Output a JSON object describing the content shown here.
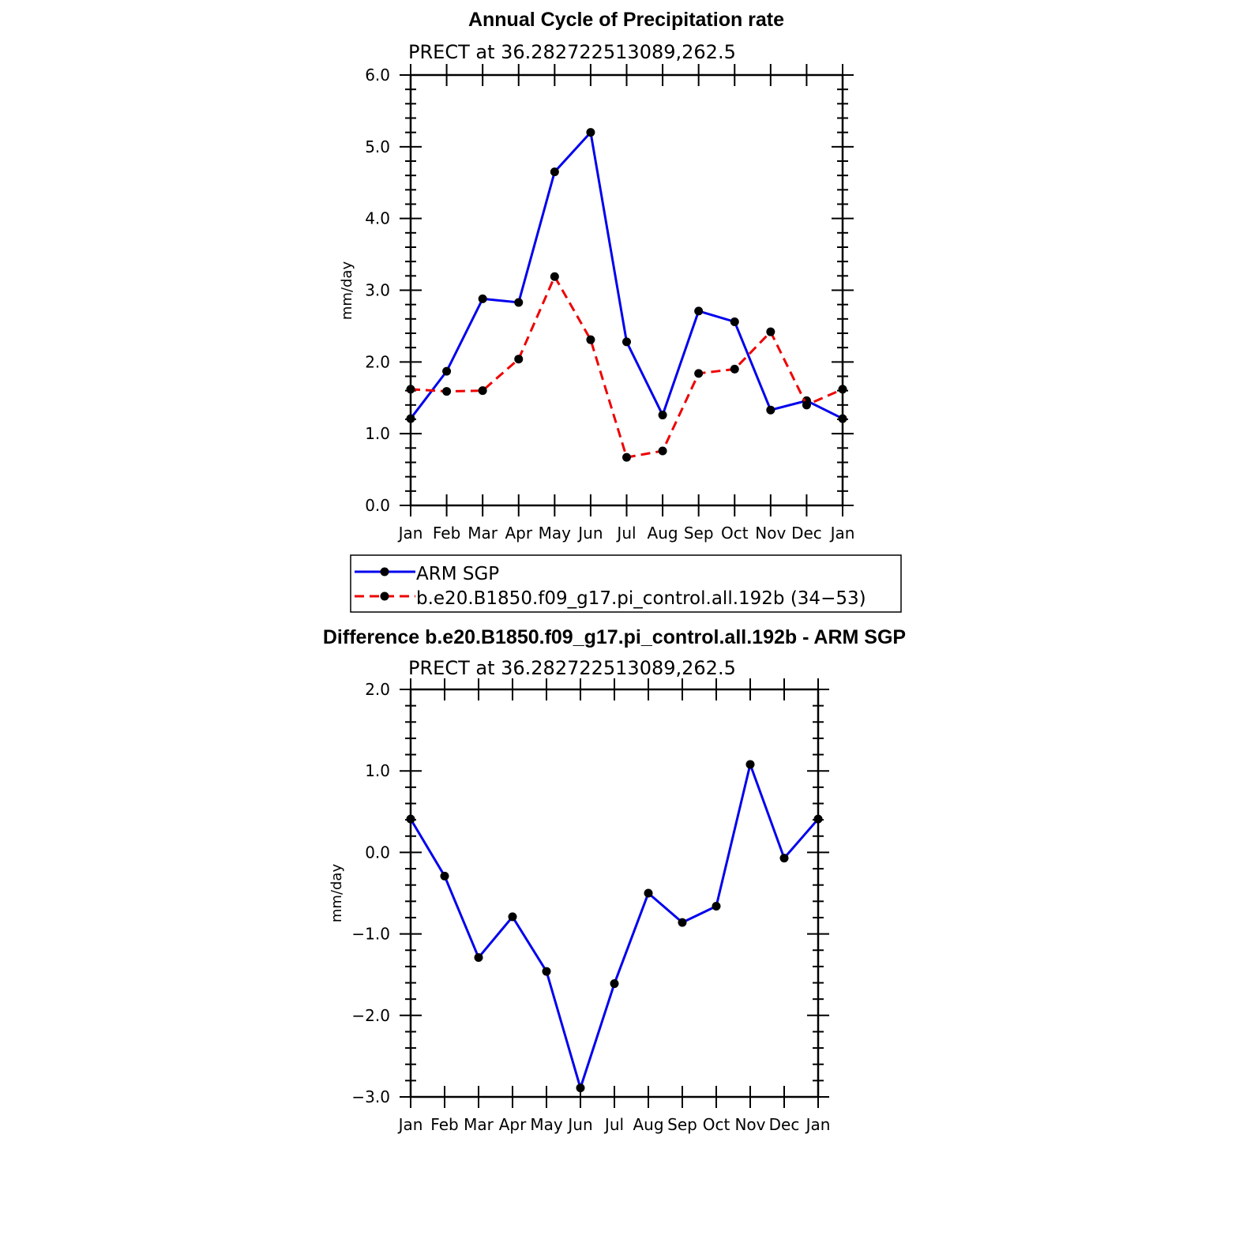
{
  "chart_data": [
    {
      "type": "line",
      "title": "Annual Cycle of Precipitation rate",
      "subtitle": "PRECT at 36.282722513089,262.5",
      "ylabel": "mm/day",
      "ylim": [
        0,
        6
      ],
      "yticks": [
        "0.0",
        "1.0",
        "2.0",
        "3.0",
        "4.0",
        "5.0",
        "6.0"
      ],
      "categories": [
        "Jan",
        "Feb",
        "Mar",
        "Apr",
        "May",
        "Jun",
        "Jul",
        "Aug",
        "Sep",
        "Oct",
        "Nov",
        "Dec",
        "Jan"
      ],
      "legend_position": "below",
      "series": [
        {
          "name": "ARM SGP",
          "color": "#0000ee",
          "dash": "solid",
          "values": [
            1.21,
            1.87,
            2.88,
            2.83,
            4.65,
            5.2,
            2.28,
            1.26,
            2.71,
            2.56,
            1.33,
            1.46,
            1.21
          ]
        },
        {
          "name": "b.e20.B1850.f09_g17.pi_control.all.192b (34−53)",
          "color": "#ee0000",
          "dash": "dashed",
          "values": [
            1.62,
            1.59,
            1.6,
            2.04,
            3.19,
            2.31,
            0.67,
            0.76,
            1.84,
            1.9,
            2.42,
            1.4,
            1.62
          ]
        }
      ]
    },
    {
      "type": "line",
      "title": "Difference b.e20.B1850.f09_g17.pi_control.all.192b - ARM SGP",
      "subtitle": "PRECT at 36.282722513089,262.5",
      "ylabel": "mm/day",
      "ylim": [
        -3,
        2
      ],
      "yticks": [
        "−3.0",
        "−2.0",
        "−1.0",
        "0.0",
        "1.0",
        "2.0"
      ],
      "categories": [
        "Jan",
        "Feb",
        "Mar",
        "Apr",
        "May",
        "Jun",
        "Jul",
        "Aug",
        "Sep",
        "Oct",
        "Nov",
        "Dec",
        "Jan"
      ],
      "series": [
        {
          "color": "#0000ee",
          "dash": "solid",
          "values": [
            0.41,
            -0.29,
            -1.29,
            -0.79,
            -1.46,
            -2.89,
            -1.61,
            -0.5,
            -0.86,
            -0.66,
            1.08,
            -0.07,
            0.41
          ]
        }
      ]
    }
  ]
}
